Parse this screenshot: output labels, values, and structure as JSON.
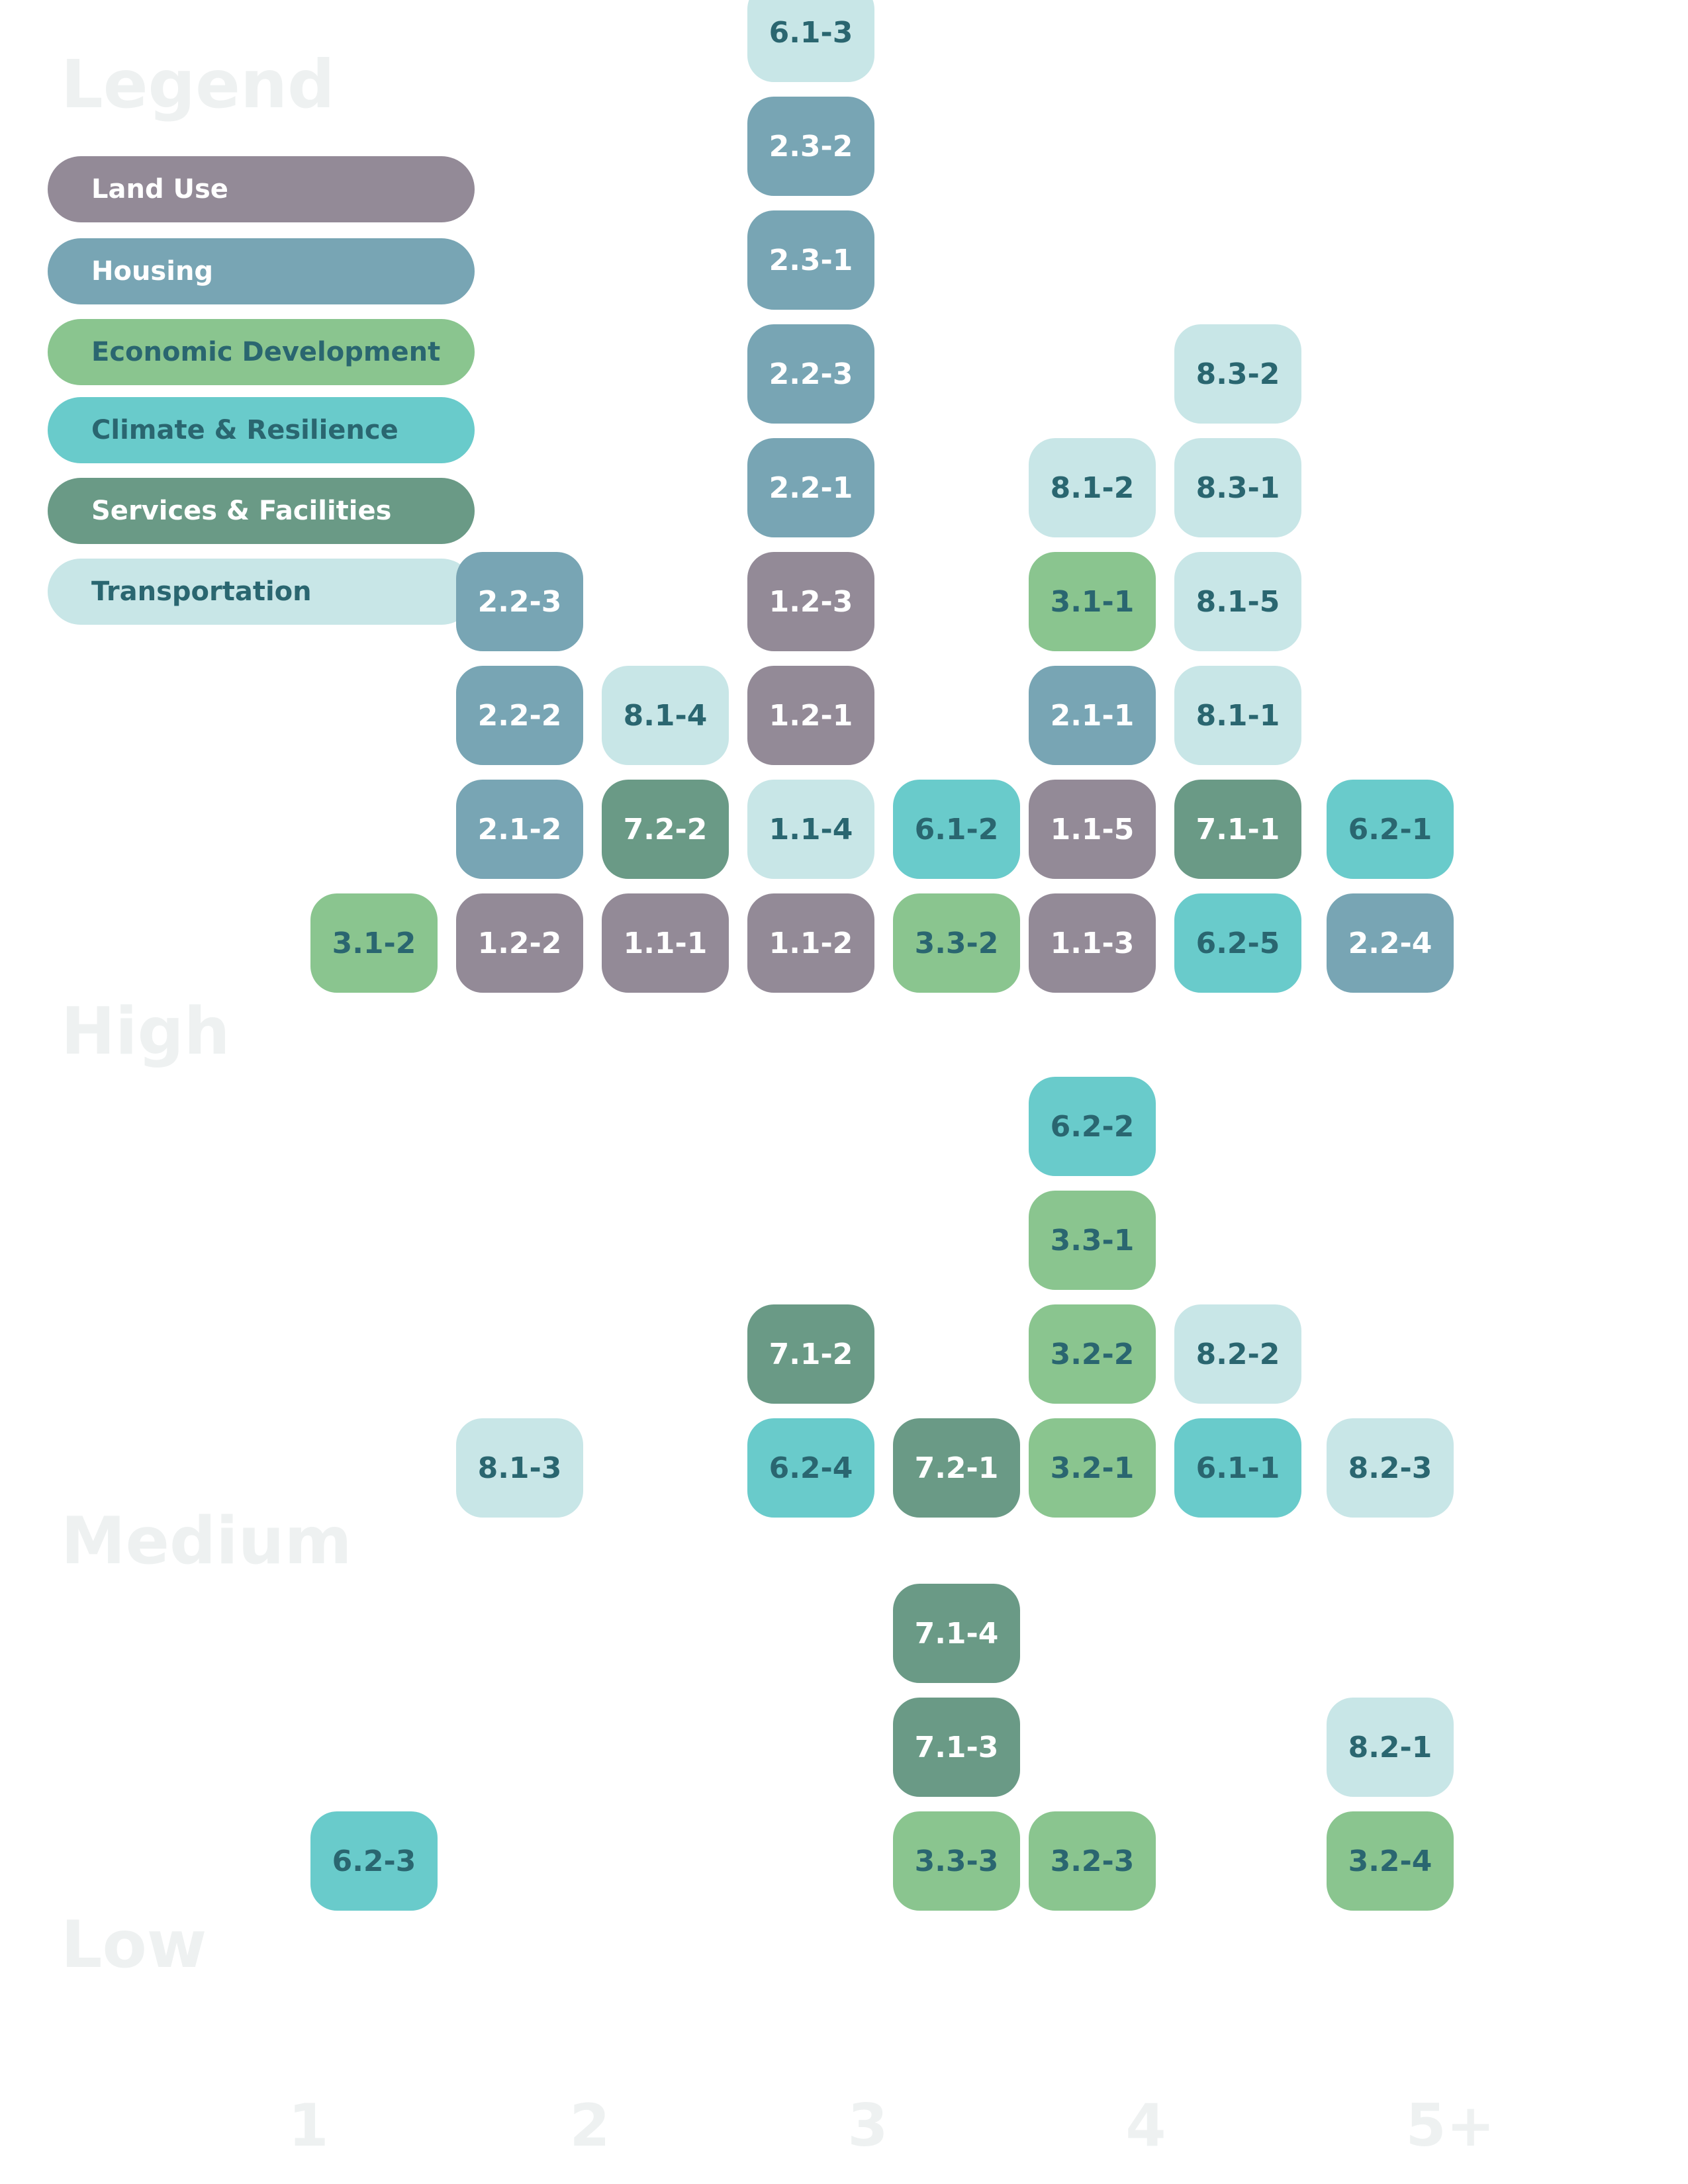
{
  "chart_data": {
    "type": "table",
    "title": "",
    "xlabel": "",
    "ylabel": "",
    "legend": {
      "title": "Legend",
      "placement": "top-left",
      "items": [
        {
          "key": "land_use",
          "label": "Land Use",
          "color": "#938a97",
          "text_color": "#ffffff"
        },
        {
          "key": "housing",
          "label": "Housing",
          "color": "#78a5b4",
          "text_color": "#ffffff"
        },
        {
          "key": "economic",
          "label": "Economic Development",
          "color": "#8ac58f",
          "text_color": "#2a6670"
        },
        {
          "key": "climate",
          "label": "Climate & Resilience",
          "color": "#69cbcb",
          "text_color": "#2a6670"
        },
        {
          "key": "services",
          "label": "Services & Facilities",
          "color": "#6a9a86",
          "text_color": "#ffffff"
        },
        {
          "key": "transport",
          "label": "Transportation",
          "color": "#c8e6e7",
          "text_color": "#2a6670"
        }
      ]
    },
    "row_labels": [
      "High",
      "Medium",
      "Low"
    ],
    "column_labels": [
      "1",
      "2",
      "3",
      "4",
      "5+"
    ],
    "groups": [
      {
        "row": "High",
        "stacks": [
          {
            "column": "1",
            "slot": 0,
            "items": [
              {
                "label": "3.1-2",
                "category": "economic"
              }
            ]
          },
          {
            "column": "2",
            "slot": 0,
            "items": [
              {
                "label": "1.2-2",
                "category": "land_use"
              },
              {
                "label": "2.1-2",
                "category": "housing"
              },
              {
                "label": "2.2-2",
                "category": "housing"
              },
              {
                "label": "2.2-3",
                "category": "housing"
              }
            ]
          },
          {
            "column": "2",
            "slot": 1,
            "items": [
              {
                "label": "1.1-1",
                "category": "land_use"
              },
              {
                "label": "7.2-2",
                "category": "services"
              },
              {
                "label": "8.1-4",
                "category": "transport"
              }
            ]
          },
          {
            "column": "3",
            "slot": 0,
            "items": [
              {
                "label": "1.1-2",
                "category": "land_use"
              },
              {
                "label": "1.1-4",
                "category": "transport"
              },
              {
                "label": "1.2-1",
                "category": "land_use"
              },
              {
                "label": "1.2-3",
                "category": "land_use"
              },
              {
                "label": "2.2-1",
                "category": "housing"
              },
              {
                "label": "2.2-3",
                "category": "housing"
              },
              {
                "label": "2.3-1",
                "category": "housing"
              },
              {
                "label": "2.3-2",
                "category": "housing"
              },
              {
                "label": "6.1-3",
                "category": "transport"
              }
            ]
          },
          {
            "column": "3",
            "slot": 1,
            "items": [
              {
                "label": "3.3-2",
                "category": "economic"
              },
              {
                "label": "6.1-2",
                "category": "climate"
              }
            ]
          },
          {
            "column": "4",
            "slot": 0,
            "items": [
              {
                "label": "1.1-3",
                "category": "land_use"
              },
              {
                "label": "1.1-5",
                "category": "land_use"
              },
              {
                "label": "2.1-1",
                "category": "housing"
              },
              {
                "label": "3.1-1",
                "category": "economic"
              },
              {
                "label": "8.1-2",
                "category": "transport"
              }
            ]
          },
          {
            "column": "4",
            "slot": 1,
            "items": [
              {
                "label": "6.2-5",
                "category": "climate"
              },
              {
                "label": "7.1-1",
                "category": "services"
              },
              {
                "label": "8.1-1",
                "category": "transport"
              },
              {
                "label": "8.1-5",
                "category": "transport"
              },
              {
                "label": "8.3-1",
                "category": "transport"
              },
              {
                "label": "8.3-2",
                "category": "transport"
              }
            ]
          },
          {
            "column": "5+",
            "slot": 0,
            "items": [
              {
                "label": "2.2-4",
                "category": "housing"
              },
              {
                "label": "6.2-1",
                "category": "climate"
              }
            ]
          }
        ]
      },
      {
        "row": "Medium",
        "stacks": [
          {
            "column": "2",
            "slot": 0,
            "items": [
              {
                "label": "8.1-3",
                "category": "transport"
              }
            ]
          },
          {
            "column": "3",
            "slot": 0,
            "items": [
              {
                "label": "6.2-4",
                "category": "climate"
              },
              {
                "label": "7.1-2",
                "category": "services"
              }
            ]
          },
          {
            "column": "3",
            "slot": 1,
            "items": [
              {
                "label": "7.2-1",
                "category": "services"
              }
            ]
          },
          {
            "column": "4",
            "slot": 0,
            "items": [
              {
                "label": "3.2-1",
                "category": "economic"
              },
              {
                "label": "3.2-2",
                "category": "economic"
              },
              {
                "label": "3.3-1",
                "category": "economic"
              },
              {
                "label": "6.2-2",
                "category": "climate"
              }
            ]
          },
          {
            "column": "4",
            "slot": 1,
            "items": [
              {
                "label": "6.1-1",
                "category": "climate"
              },
              {
                "label": "8.2-2",
                "category": "transport"
              }
            ]
          },
          {
            "column": "5+",
            "slot": 0,
            "items": [
              {
                "label": "8.2-3",
                "category": "transport"
              }
            ]
          }
        ]
      },
      {
        "row": "Low",
        "stacks": [
          {
            "column": "1",
            "slot": 0,
            "items": [
              {
                "label": "6.2-3",
                "category": "climate"
              }
            ]
          },
          {
            "column": "3",
            "slot": 1,
            "items": [
              {
                "label": "3.3-3",
                "category": "economic"
              },
              {
                "label": "7.1-3",
                "category": "services"
              },
              {
                "label": "7.1-4",
                "category": "services"
              }
            ]
          },
          {
            "column": "4",
            "slot": 0,
            "items": [
              {
                "label": "3.2-3",
                "category": "economic"
              }
            ]
          },
          {
            "column": "5+",
            "slot": 0,
            "items": [
              {
                "label": "3.2-4",
                "category": "economic"
              },
              {
                "label": "8.2-1",
                "category": "transport"
              }
            ]
          }
        ]
      }
    ]
  }
}
